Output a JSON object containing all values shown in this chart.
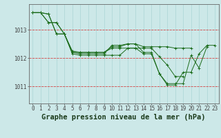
{
  "title": "Graphe pression niveau de la mer (hPa)",
  "background_color": "#cce8e8",
  "plot_bg_color": "#cce8e8",
  "grid_color_v": "#aad4d4",
  "grid_color_h": "#aad4d4",
  "red_line_color": "#dd4444",
  "line_color": "#1a6b1a",
  "xlim": [
    -0.5,
    23.5
  ],
  "ylim": [
    1010.4,
    1013.9
  ],
  "yticks": [
    1011,
    1012,
    1013
  ],
  "xticks": [
    0,
    1,
    2,
    3,
    4,
    5,
    6,
    7,
    8,
    9,
    10,
    11,
    12,
    13,
    14,
    15,
    16,
    17,
    18,
    19,
    20,
    21,
    22,
    23
  ],
  "series": [
    [
      1013.6,
      1013.6,
      1013.55,
      1012.85,
      1012.85,
      1012.15,
      1012.1,
      1012.1,
      1012.1,
      1012.1,
      1012.1,
      1012.1,
      1012.35,
      1012.35,
      1012.15,
      1012.15,
      1011.45,
      1011.1,
      1011.1,
      1011.1,
      1012.1,
      1011.65,
      1012.4,
      null
    ],
    [
      1013.6,
      1013.6,
      1013.55,
      1012.85,
      1012.85,
      1012.2,
      1012.2,
      1012.2,
      1012.2,
      1012.2,
      1012.35,
      1012.35,
      1012.35,
      1012.35,
      1012.35,
      1012.35,
      1012.05,
      1011.75,
      1011.35,
      1011.35,
      null,
      null,
      null,
      null
    ],
    [
      1013.6,
      1013.6,
      1013.25,
      1013.25,
      1012.85,
      1012.25,
      1012.2,
      1012.2,
      1012.2,
      1012.2,
      1012.4,
      1012.4,
      1012.5,
      1012.5,
      1012.4,
      1012.4,
      1012.4,
      1012.4,
      1012.35,
      1012.35,
      1012.35,
      null,
      null,
      null
    ],
    [
      1013.6,
      1013.6,
      1013.25,
      1013.25,
      1012.85,
      1012.2,
      1012.15,
      1012.15,
      1012.15,
      1012.15,
      1012.45,
      1012.45,
      1012.5,
      1012.5,
      1012.2,
      1012.2,
      1011.45,
      1011.05,
      1011.05,
      1011.5,
      1011.5,
      1012.15,
      1012.45,
      1012.45
    ]
  ],
  "title_fontsize": 7.5,
  "tick_fontsize": 5.5,
  "ylabel_fontsize": 6.5
}
